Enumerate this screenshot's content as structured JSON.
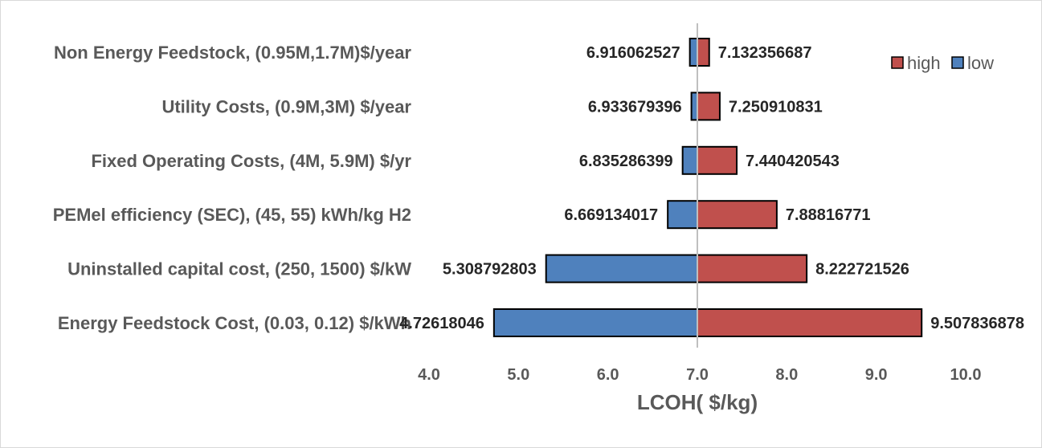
{
  "chart_data": {
    "type": "bar",
    "orientation": "horizontal",
    "variant": "tornado",
    "title": "",
    "xlabel": "LCOH( $/kg)",
    "ylabel": "",
    "xlim": [
      4.0,
      10.0
    ],
    "xticks": [
      4.0,
      5.0,
      6.0,
      7.0,
      8.0,
      9.0,
      10.0
    ],
    "xtick_labels": [
      "4.0",
      "5.0",
      "6.0",
      "7.0",
      "8.0",
      "9.0",
      "10.0"
    ],
    "base": 7.0,
    "grid": false,
    "legend_position": "top-right",
    "categories": [
      "Non Energy Feedstock, (0.95M,1.7M)$/year",
      "Utility Costs, (0.9M,3M) $/year",
      "Fixed Operating Costs, (4M, 5.9M) $/yr",
      "PEMel efficiency (SEC), (45, 55) kWh/kg H2",
      "Uninstalled capital cost, (250, 1500) $/kW",
      "Energy Feedstock Cost, (0.03, 0.12) $/kWh"
    ],
    "series": [
      {
        "name": "high",
        "color": "#c0504d",
        "values": [
          7.132356687,
          7.250910831,
          7.440420543,
          7.88816771,
          8.222721526,
          9.507836878
        ],
        "labels": [
          "7.132356687",
          "7.250910831",
          "7.440420543",
          "7.88816771",
          "8.222721526",
          "9.507836878"
        ]
      },
      {
        "name": "low",
        "color": "#4f81bd",
        "values": [
          6.916062527,
          6.933679396,
          6.835286399,
          6.669134017,
          5.308792803,
          4.72618046
        ],
        "labels": [
          "6.916062527",
          "6.933679396",
          "6.835286399",
          "6.669134017",
          "5.308792803",
          "4.72618046"
        ]
      }
    ]
  }
}
